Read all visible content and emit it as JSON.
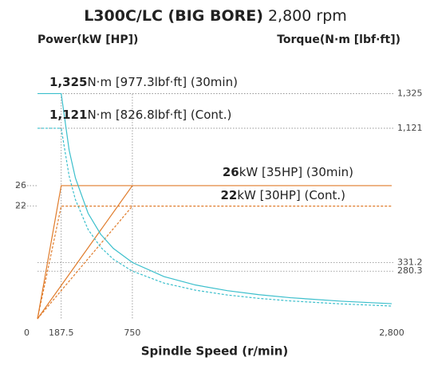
{
  "chart_data": {
    "type": "line",
    "title": {
      "bold": "L300C/LC (BIG BORE)",
      "normal": "2,800 rpm"
    },
    "y_label": "Power(kW [HP])",
    "y2_label": "Torque(N·m [lbf·ft])",
    "x_label": "Spindle Speed (r/min)",
    "xlim": [
      0,
      2800
    ],
    "xticks": [
      0,
      187.5,
      750,
      {
        "value": 2800,
        "label": "2,800"
      }
    ],
    "ylim": [
      0,
      52.6
    ],
    "yticks": [
      26,
      22
    ],
    "y2lim": [
      0,
      1585
    ],
    "y2ticks": [
      {
        "value": 1325,
        "label": "1,325"
      },
      {
        "value": 1121,
        "label": "1,121"
      },
      331.2,
      280.3
    ],
    "series": [
      {
        "color": "#e07b2a",
        "dash": false,
        "axis": "y",
        "x": [
          0,
          187.5,
          2800
        ],
        "values": [
          0,
          26,
          26
        ]
      },
      {
        "color": "#e07b2a",
        "dash": false,
        "axis": "y",
        "x": [
          0,
          750
        ],
        "values": [
          0,
          26
        ]
      },
      {
        "color": "#e07b2a",
        "dash": true,
        "axis": "y",
        "x": [
          0,
          187.5,
          2800
        ],
        "values": [
          0,
          22,
          22
        ]
      },
      {
        "color": "#e07b2a",
        "dash": true,
        "axis": "y",
        "x": [
          0,
          750
        ],
        "values": [
          0,
          22
        ]
      },
      {
        "color": "#3bbfcc",
        "dash": false,
        "axis": "y2",
        "x": [
          0,
          187.5,
          250,
          300,
          400,
          500,
          600,
          750,
          1000,
          1250,
          1500,
          1750,
          2000,
          2400,
          2800
        ],
        "values": [
          1325,
          1325,
          993.1,
          827.6,
          620.7,
          496.6,
          413.8,
          331.2,
          248.3,
          198.6,
          165.5,
          141.9,
          124.1,
          103.4,
          88.7
        ]
      },
      {
        "color": "#3bbfcc",
        "dash": true,
        "axis": "y2",
        "x": [
          0,
          187.5,
          250,
          300,
          400,
          500,
          600,
          750,
          1000,
          1250,
          1500,
          1750,
          2000,
          2400,
          2800
        ],
        "values": [
          1121,
          1121,
          840.3,
          700.3,
          525.2,
          420.2,
          350.1,
          280.3,
          210.1,
          168.1,
          140.1,
          120.0,
          105.0,
          87.5,
          75.0
        ]
      }
    ],
    "annotations": [
      {
        "bold": "1,325",
        "text": "N·m [977.3lbf·ft] (30min)"
      },
      {
        "bold": "1,121",
        "text": "N·m [826.8lbf·ft] (Cont.)"
      },
      {
        "bold": "26",
        "text": "kW [35HP] (30min)"
      },
      {
        "bold": "22",
        "text": "kW [30HP] (Cont.)"
      }
    ]
  }
}
